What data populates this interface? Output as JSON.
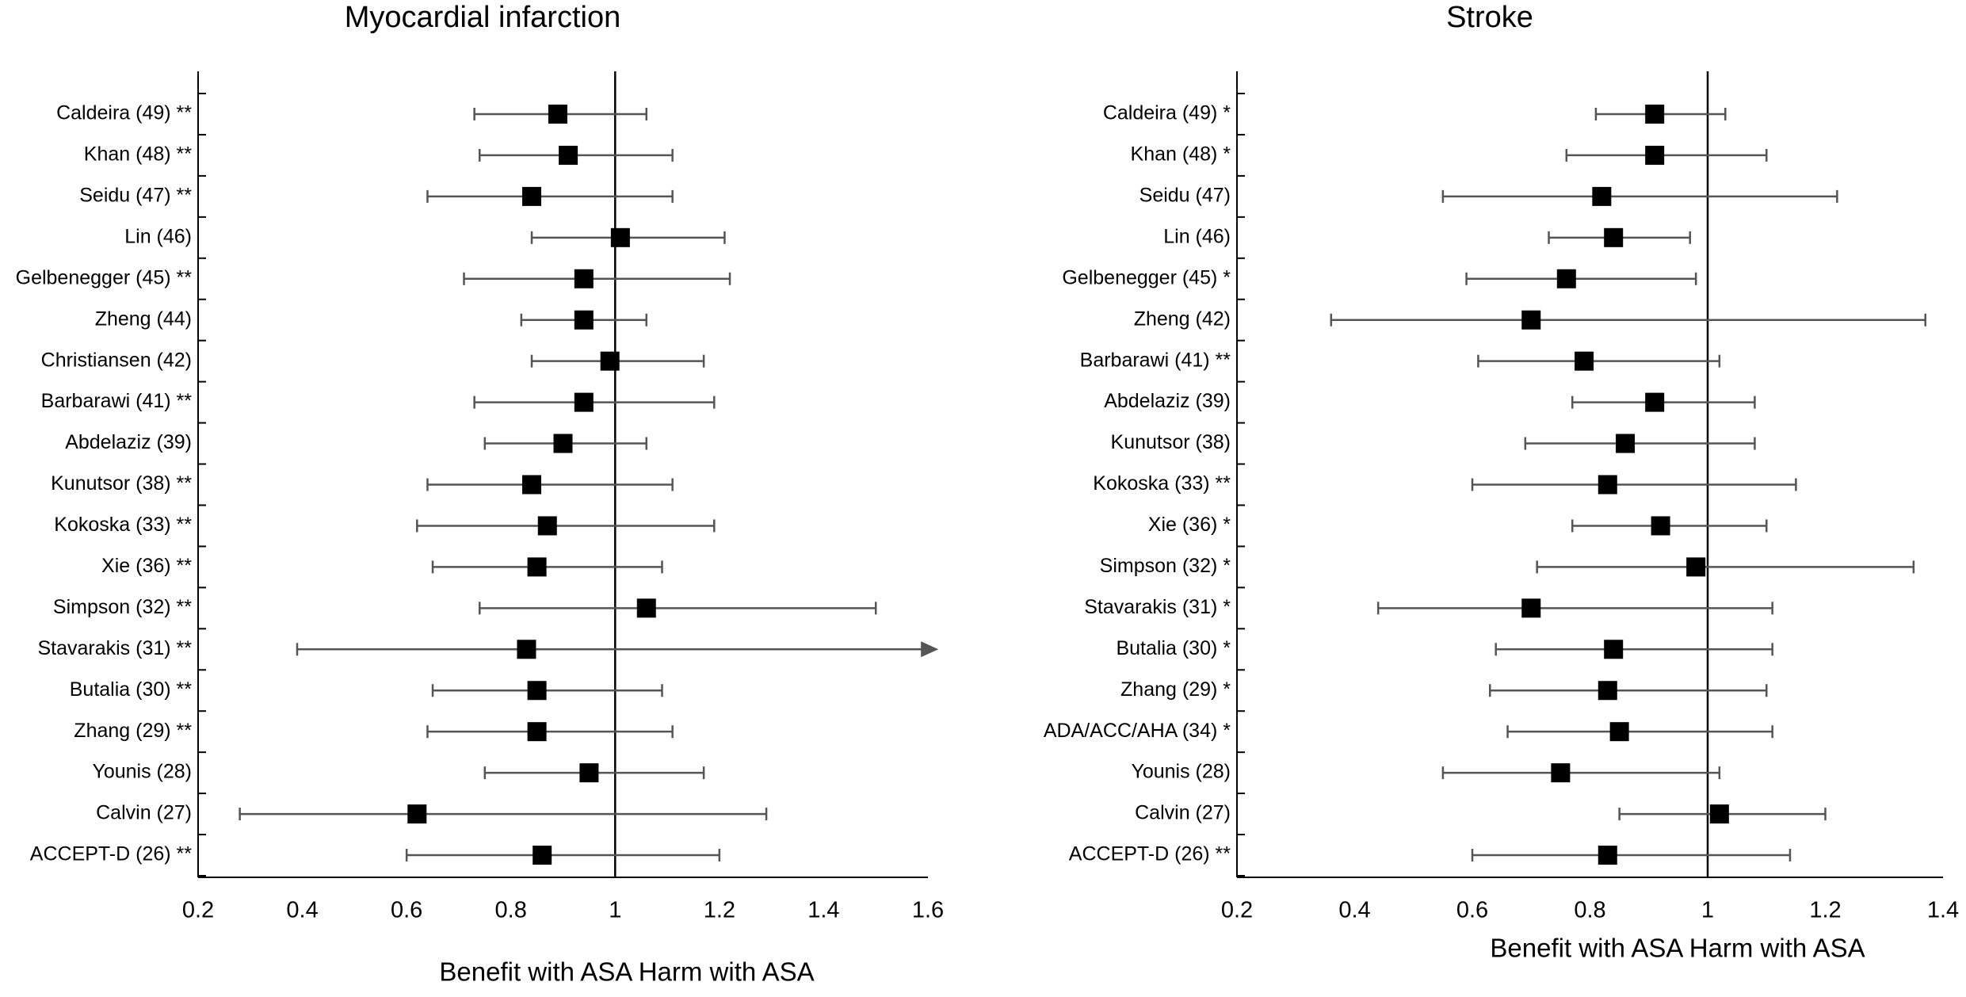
{
  "chart_data": [
    {
      "type": "forest",
      "title": "Myocardial infarction",
      "x_label": "Benefit with ASA Harm with ASA",
      "categories": [
        "Caldeira (49) **",
        "Khan (48) **",
        "Seidu (47) **",
        "Lin (46)",
        "Gelbenegger (45) **",
        "Zheng (44)",
        "Christiansen (42)",
        "Barbarawi (41) **",
        "Abdelaziz (39)",
        "Kunutsor (38) **",
        "Kokoska (33) **",
        "Xie (36) **",
        "Simpson (32) **",
        "Stavarakis (31) **",
        "Butalia (30) **",
        "Zhang (29) **",
        "Younis (28)",
        "Calvin (27)",
        "ACCEPT-D (26) **"
      ],
      "values": [
        0.89,
        0.91,
        0.84,
        1.01,
        0.94,
        0.94,
        0.99,
        0.94,
        0.9,
        0.84,
        0.87,
        0.85,
        1.06,
        0.83,
        0.85,
        0.85,
        0.95,
        0.62,
        0.86
      ],
      "lower": [
        0.73,
        0.74,
        0.64,
        0.84,
        0.71,
        0.82,
        0.84,
        0.73,
        0.75,
        0.64,
        0.62,
        0.65,
        0.74,
        0.39,
        0.65,
        0.64,
        0.75,
        0.28,
        0.6
      ],
      "upper": [
        1.06,
        1.11,
        1.11,
        1.21,
        1.22,
        1.06,
        1.17,
        1.19,
        1.06,
        1.11,
        1.19,
        1.09,
        1.5,
        1.62,
        1.09,
        1.11,
        1.17,
        1.29,
        1.2
      ],
      "ref_line": 1,
      "color": "#000000",
      "whisker_color": "#555555",
      "xlim": [
        0.2,
        1.6
      ],
      "xticks": [
        0.2,
        0.4,
        0.6,
        0.8,
        1,
        1.2,
        1.4,
        1.6
      ]
    },
    {
      "type": "forest",
      "title": "Stroke",
      "x_label": "Benefit with ASA Harm with ASA",
      "categories": [
        "Caldeira (49) *",
        "Khan (48) *",
        "Seidu (47)",
        "Lin (46)",
        "Gelbenegger (45) *",
        "Zheng (42)",
        "Barbarawi (41) **",
        "Abdelaziz (39)",
        "Kunutsor (38)",
        "Kokoska (33) **",
        "Xie (36) *",
        "Simpson (32) *",
        "Stavarakis (31) *",
        "Butalia (30) *",
        "Zhang (29) *",
        "ADA/ACC/AHA (34) *",
        "Younis (28)",
        "Calvin (27)",
        "ACCEPT-D (26) **"
      ],
      "values": [
        0.91,
        0.91,
        0.82,
        0.84,
        0.76,
        0.7,
        0.79,
        0.91,
        0.86,
        0.83,
        0.92,
        0.98,
        0.7,
        0.84,
        0.83,
        0.85,
        0.75,
        1.02,
        0.83
      ],
      "lower": [
        0.81,
        0.76,
        0.55,
        0.73,
        0.59,
        0.36,
        0.61,
        0.77,
        0.69,
        0.6,
        0.77,
        0.71,
        0.44,
        0.64,
        0.63,
        0.66,
        0.55,
        0.85,
        0.6
      ],
      "upper": [
        1.03,
        1.1,
        1.22,
        0.97,
        0.98,
        1.37,
        1.02,
        1.08,
        1.08,
        1.15,
        1.1,
        1.35,
        1.11,
        1.11,
        1.1,
        1.11,
        1.02,
        1.2,
        1.14
      ],
      "ref_line": 1,
      "color": "#000000",
      "whisker_color": "#555555",
      "xlim": [
        0.2,
        1.4
      ],
      "xticks": [
        0.2,
        0.4,
        0.6,
        0.8,
        1,
        1.2,
        1.4
      ]
    }
  ]
}
